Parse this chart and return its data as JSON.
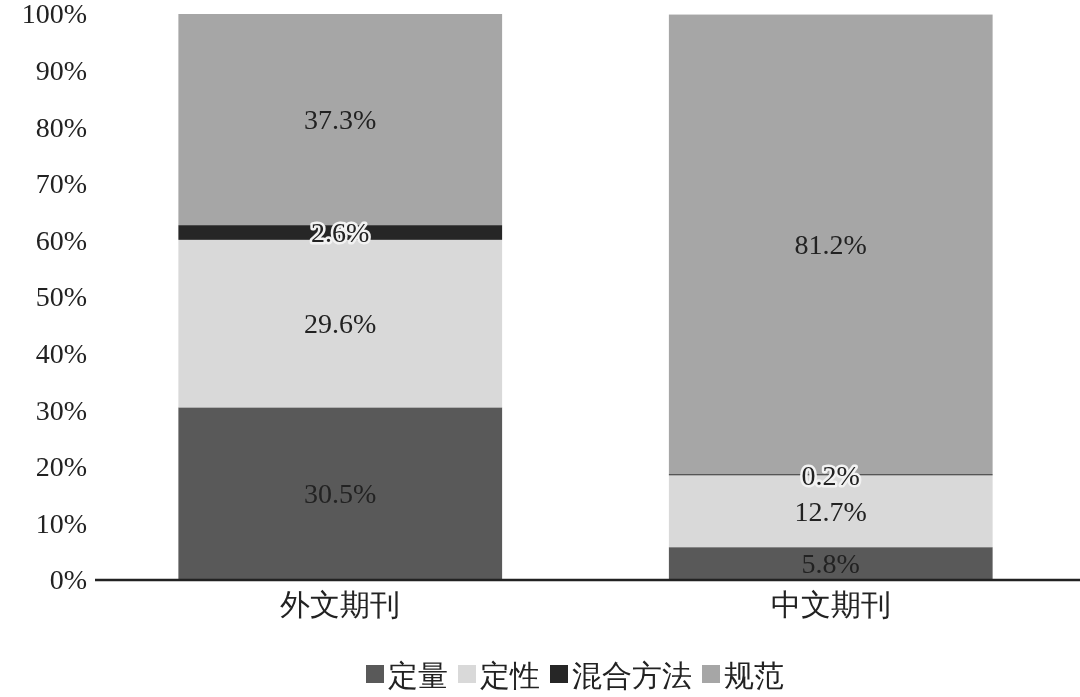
{
  "chart_data": {
    "type": "bar",
    "stacked": true,
    "categories": [
      "外文期刊",
      "中文期刊"
    ],
    "series": [
      {
        "name": "定量",
        "color": "#595959",
        "values": [
          30.5,
          5.8
        ],
        "value_labels": [
          "30.5%",
          "5.8%"
        ]
      },
      {
        "name": "定性",
        "color": "#d9d9d9",
        "values": [
          29.6,
          12.7
        ],
        "value_labels": [
          "29.6%",
          "12.7%"
        ]
      },
      {
        "name": "混合方法",
        "color": "#262626",
        "values": [
          2.6,
          0.2
        ],
        "value_labels": [
          "2.6%",
          "0.2%"
        ]
      },
      {
        "name": "规范",
        "color": "#a6a6a6",
        "values": [
          37.3,
          81.2
        ],
        "value_labels": [
          "37.3%",
          "81.2%"
        ]
      }
    ],
    "ylim": [
      0,
      100
    ],
    "yticks": [
      {
        "value": 0,
        "label": "0%"
      },
      {
        "value": 10,
        "label": "10%"
      },
      {
        "value": 20,
        "label": "20%"
      },
      {
        "value": 30,
        "label": "30%"
      },
      {
        "value": 40,
        "label": "40%"
      },
      {
        "value": 50,
        "label": "50%"
      },
      {
        "value": 60,
        "label": "60%"
      },
      {
        "value": 70,
        "label": "70%"
      },
      {
        "value": 80,
        "label": "80%"
      },
      {
        "value": 90,
        "label": "90%"
      },
      {
        "value": 100,
        "label": "100%"
      }
    ],
    "legend": "bottom",
    "grid": false
  }
}
